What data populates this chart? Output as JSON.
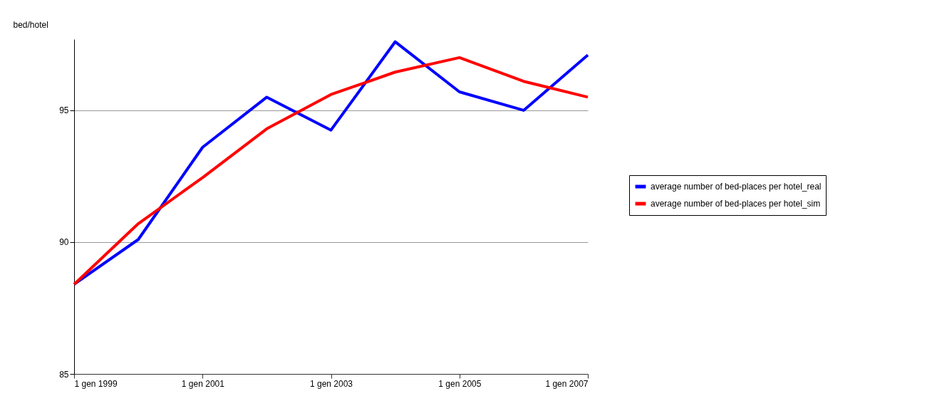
{
  "chart_data": {
    "type": "line",
    "ylabel": "bed/hotel",
    "x": [
      "1999",
      "2000",
      "2001",
      "2002",
      "2003",
      "2004",
      "2005",
      "2006",
      "2007"
    ],
    "series": [
      {
        "name": "average number of bed-places per hotel_real",
        "color": "#0000ff",
        "values": [
          88.4,
          90.1,
          93.6,
          95.5,
          94.25,
          97.6,
          95.7,
          95.0,
          97.1
        ]
      },
      {
        "name": "average number of bed-places per hotel_sim",
        "color": "#ff0000",
        "values": [
          88.4,
          90.7,
          92.45,
          94.3,
          95.6,
          96.45,
          97.0,
          96.1,
          95.5
        ]
      }
    ],
    "xlim": [
      "1999",
      "2007"
    ],
    "xticks": [
      {
        "value": "1999",
        "label": "1 gen 1999"
      },
      {
        "value": "2001",
        "label": "1 gen 2001"
      },
      {
        "value": "2003",
        "label": "1 gen 2003"
      },
      {
        "value": "2005",
        "label": "1 gen 2005"
      },
      {
        "value": "2007",
        "label": "1 gen 2007"
      }
    ],
    "ylim": [
      85,
      97.7
    ],
    "yticks": [
      85,
      90,
      95
    ],
    "grid": "y",
    "legend": "right",
    "marker": "none",
    "line_style": "solid"
  }
}
